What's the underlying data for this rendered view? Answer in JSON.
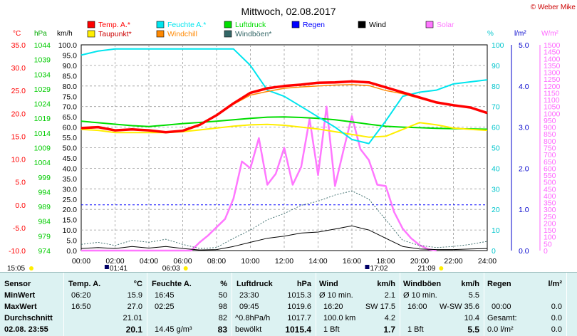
{
  "header": {
    "title": "Mittwoch, 02.08.2017",
    "credit": "© Weber Mike"
  },
  "legend": [
    {
      "label": "Temp. A.*",
      "color": "#ff0000"
    },
    {
      "label": "Feuchte A.*",
      "color": "#00e5ee"
    },
    {
      "label": "Luftdruck",
      "color": "#00dd00"
    },
    {
      "label": "Regen",
      "color": "#0000ff"
    },
    {
      "label": "Wind",
      "color": "#000000"
    },
    {
      "label": "Solar",
      "color": "#ff77ff"
    },
    {
      "label": "Taupunkt*",
      "color": "#ffee00"
    },
    {
      "label": "Windchill",
      "color": "#ff8800"
    },
    {
      "label": "Windböen*",
      "color": "#336666"
    }
  ],
  "axis_units": {
    "celsius": "°C",
    "hpa": "hPa",
    "kmh": "km/h",
    "percent": "%",
    "rain": "l/m²",
    "solar": "W/m²"
  },
  "below_axis": {
    "sunrise": "06:03",
    "sunset": "21:09",
    "moonrise": "01:41",
    "moonset": "17:02",
    "now_time": "15:05"
  },
  "chart_data": {
    "type": "line",
    "x_label_ticks": [
      "00:00",
      "02:00",
      "04:00",
      "06:00",
      "08:00",
      "10:00",
      "12:00",
      "14:00",
      "16:00",
      "18:00",
      "20:00",
      "22:00",
      "24:00"
    ],
    "axes": {
      "celsius": {
        "range": [
          -10,
          35
        ],
        "ticks": [
          35.0,
          30.0,
          25.0,
          20.0,
          15.0,
          10.0,
          5.0,
          0.0,
          -5.0,
          -10.0
        ]
      },
      "hpa": {
        "range": [
          974,
          1044
        ],
        "ticks": [
          1044,
          1039,
          1034,
          1029,
          1024,
          1019,
          1014,
          1009,
          1004,
          999,
          994,
          989,
          984,
          979,
          974
        ]
      },
      "kmh": {
        "range": [
          0,
          100
        ],
        "ticks": [
          100.0,
          95.0,
          90.0,
          85.0,
          80.0,
          75.0,
          70.0,
          65.0,
          60.0,
          55.0,
          50.0,
          45.0,
          40.0,
          35.0,
          30.0,
          25.0,
          20.0,
          15.0,
          10.0,
          5.0,
          0.0
        ]
      },
      "percent": {
        "range": [
          0,
          100
        ],
        "ticks": [
          100,
          90,
          80,
          70,
          60,
          50,
          40,
          30,
          20,
          10,
          0
        ]
      },
      "rain": {
        "range": [
          0,
          5
        ],
        "ticks": [
          5.0,
          4.0,
          3.0,
          2.0,
          1.0,
          0.0
        ]
      },
      "solar": {
        "range": [
          0,
          1500
        ],
        "ticks": [
          1500,
          1450,
          1400,
          1350,
          1300,
          1250,
          1200,
          1150,
          1100,
          1050,
          1000,
          950,
          900,
          850,
          800,
          750,
          700,
          650,
          600,
          550,
          500,
          450,
          400,
          350,
          300,
          250,
          200,
          150,
          100,
          50,
          0
        ]
      }
    },
    "series": [
      {
        "name": "Temp. A.*",
        "axis": "celsius",
        "x": [
          0,
          1,
          2,
          3,
          4,
          5,
          6,
          7,
          8,
          9,
          10,
          11,
          12,
          13,
          14,
          15,
          16,
          17,
          18,
          19,
          20,
          21,
          22,
          23,
          24
        ],
        "values": [
          16.8,
          17.0,
          16.3,
          16.5,
          16.3,
          15.9,
          16.2,
          17.5,
          19.6,
          22.2,
          24.5,
          25.5,
          26.0,
          26.3,
          26.7,
          26.8,
          27.0,
          26.8,
          25.7,
          24.6,
          23.5,
          22.4,
          21.8,
          21.3,
          20.1
        ]
      },
      {
        "name": "Feuchte A.*",
        "axis": "percent",
        "x": [
          0,
          1,
          2,
          3,
          4,
          5,
          6,
          7,
          8,
          9,
          10,
          11,
          12,
          13,
          14,
          15,
          16,
          17,
          18,
          19,
          20,
          21,
          22,
          23,
          24
        ],
        "values": [
          95,
          97,
          98,
          98,
          98,
          98,
          98,
          98,
          98,
          98,
          90,
          78,
          75,
          70,
          65,
          60,
          54,
          52,
          63,
          75,
          77,
          78,
          81,
          82,
          83
        ]
      },
      {
        "name": "Luftdruck",
        "axis": "hpa",
        "x": [
          0,
          1,
          2,
          3,
          4,
          5,
          6,
          7,
          8,
          9,
          10,
          11,
          12,
          13,
          14,
          15,
          16,
          17,
          18,
          19,
          20,
          21,
          22,
          23,
          24
        ],
        "values": [
          1018.0,
          1017.5,
          1017.0,
          1016.5,
          1016.2,
          1016.7,
          1017.2,
          1017.6,
          1018.0,
          1018.5,
          1019.0,
          1019.4,
          1019.5,
          1019.3,
          1019.0,
          1018.5,
          1017.8,
          1017.0,
          1016.3,
          1016.0,
          1015.8,
          1015.6,
          1015.5,
          1015.4,
          1015.3
        ]
      },
      {
        "name": "Taupunkt*",
        "axis": "celsius",
        "x": [
          0,
          1,
          2,
          3,
          4,
          5,
          6,
          7,
          8,
          9,
          10,
          11,
          12,
          13,
          14,
          15,
          16,
          17,
          18,
          19,
          20,
          21,
          22,
          23,
          24
        ],
        "values": [
          16.5,
          16.3,
          15.8,
          15.8,
          15.8,
          15.8,
          16.0,
          16.4,
          16.8,
          17.2,
          17.5,
          17.6,
          17.4,
          17.0,
          16.6,
          16.0,
          15.4,
          14.8,
          15.0,
          16.5,
          18.0,
          17.5,
          16.8,
          16.5,
          16.3
        ]
      },
      {
        "name": "Windchill",
        "axis": "celsius",
        "x": [
          0,
          1,
          2,
          3,
          4,
          5,
          6,
          7,
          8,
          9,
          10,
          11,
          12,
          13,
          14,
          15,
          16,
          17,
          18,
          19,
          20,
          21,
          22,
          23,
          24
        ],
        "values": [
          16.8,
          17.0,
          16.3,
          16.5,
          16.3,
          15.9,
          16.2,
          17.5,
          19.6,
          22.0,
          24.0,
          24.8,
          25.5,
          25.8,
          26.0,
          26.2,
          26.3,
          26.1,
          25.0,
          24.3,
          23.3,
          22.3,
          21.7,
          21.2,
          20.1
        ]
      },
      {
        "name": "Wind",
        "axis": "kmh",
        "x": [
          0,
          1,
          2,
          3,
          4,
          5,
          6,
          7,
          8,
          9,
          10,
          11,
          12,
          13,
          14,
          15,
          16,
          17,
          18,
          19,
          20,
          21,
          22,
          23,
          24
        ],
        "values": [
          1.0,
          1.5,
          1.0,
          2.0,
          1.2,
          2.0,
          1.0,
          0.3,
          0.5,
          2.0,
          4.0,
          6.0,
          7.0,
          8.5,
          9.0,
          10.5,
          12.0,
          10.0,
          6.0,
          2.0,
          0.8,
          0.5,
          0.5,
          0.8,
          1.0
        ]
      },
      {
        "name": "Windböen*",
        "axis": "kmh",
        "x": [
          0,
          1,
          2,
          3,
          4,
          5,
          6,
          7,
          8,
          9,
          10,
          11,
          12,
          13,
          14,
          15,
          16,
          17,
          18,
          19,
          20,
          21,
          22,
          23,
          24
        ],
        "values": [
          3.0,
          4.0,
          2.5,
          5.0,
          4.0,
          5.5,
          3.0,
          1.0,
          1.5,
          6.0,
          10.0,
          15.0,
          18.0,
          22.0,
          24.0,
          27.0,
          29.0,
          25.0,
          15.0,
          5.0,
          2.5,
          1.5,
          2.0,
          3.0,
          4.5
        ]
      },
      {
        "name": "Solar",
        "axis": "solar",
        "x": [
          0,
          6.5,
          7,
          7.5,
          8,
          8.5,
          9,
          9.5,
          10,
          10.5,
          11,
          11.5,
          12,
          12.5,
          13,
          13.5,
          14,
          14.5,
          15,
          15.5,
          16,
          16.5,
          17,
          17.5,
          18,
          18.5,
          19,
          19.5,
          20,
          20.5,
          21
        ],
        "values": [
          0,
          0,
          60,
          110,
          170,
          230,
          380,
          650,
          600,
          820,
          480,
          560,
          750,
          480,
          610,
          960,
          550,
          1050,
          470,
          730,
          980,
          740,
          660,
          480,
          470,
          280,
          160,
          90,
          40,
          10,
          0
        ]
      }
    ]
  },
  "table": {
    "headers": {
      "sensor": "Sensor",
      "temp": "Temp. A.",
      "temp_unit": "°C",
      "feuchte": "Feuchte A.",
      "feuchte_unit": "%",
      "luft": "Luftdruck",
      "luft_unit": "hPa",
      "wind": "Wind",
      "wind_unit": "km/h",
      "boen": "Windböen",
      "boen_unit": "km/h",
      "regen": "Regen",
      "regen_unit": "l/m²"
    },
    "row_labels": [
      "MinWert",
      "MaxWert",
      "Durchschnitt",
      "02.08. 23:55"
    ],
    "temp": [
      [
        "06:20",
        "15.9"
      ],
      [
        "16:50",
        "27.0"
      ],
      [
        "",
        "21.01"
      ],
      [
        "",
        "20.1"
      ]
    ],
    "feuchte": [
      [
        "16:45",
        "50"
      ],
      [
        "02:25",
        "98"
      ],
      [
        "",
        "82"
      ],
      [
        "14.45 g/m³",
        "83"
      ]
    ],
    "luft": [
      [
        "23:30",
        "1015.3"
      ],
      [
        "09:45",
        "1019.6"
      ],
      [
        "^0.8hPa/h",
        "1017.7"
      ],
      [
        "bewölkt",
        "1015.4"
      ]
    ],
    "wind": [
      [
        "Ø 10 min.",
        "",
        "2.1"
      ],
      [
        "16:20",
        "SW 17.5",
        ""
      ],
      [
        "100.0 km",
        "",
        "4.2"
      ],
      [
        "1 Bft",
        "",
        "1.7"
      ]
    ],
    "boen": [
      [
        "Ø 10 min.",
        "",
        "5.5"
      ],
      [
        "16:00",
        "W-SW 35.6",
        ""
      ],
      [
        "",
        "",
        "10.4"
      ],
      [
        "1 Bft",
        "",
        "5.5"
      ]
    ],
    "regen": [
      [
        "",
        ""
      ],
      [
        "00:00",
        "0.0"
      ],
      [
        "Gesamt:",
        "0.0"
      ],
      [
        "0.0 l/m²",
        "0.0"
      ]
    ]
  }
}
